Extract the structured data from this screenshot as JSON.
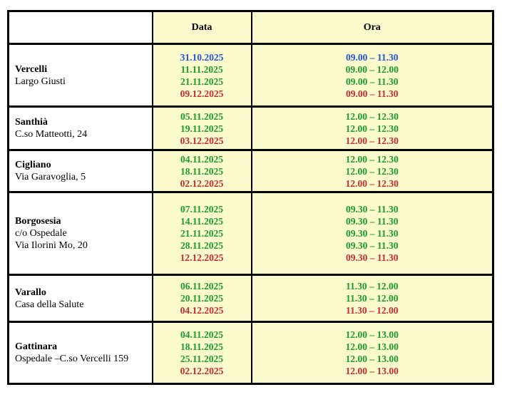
{
  "palette": {
    "blue": "#2353D9",
    "green": "#199C2C",
    "red": "#C82A2F",
    "cell_bg": "#FBFACD",
    "border": "#000000"
  },
  "table": {
    "header": {
      "location": "",
      "data": "Data",
      "ora": "Ora"
    },
    "rows": [
      {
        "name": "Vercelli",
        "address": [
          "Largo Giusti"
        ],
        "entries": [
          {
            "date": "31.10.2025",
            "ora": "09.00 – 11.30",
            "color": "blue"
          },
          {
            "date": "11.11.2025",
            "ora": "09.00 – 12.00",
            "color": "green"
          },
          {
            "date": "21.11.2025",
            "ora": "09.00 – 11.30",
            "color": "green"
          },
          {
            "date": "09.12.2025",
            "ora": "09.00 – 11.30",
            "color": "red"
          }
        ]
      },
      {
        "name": "Santhià",
        "address": [
          "C.so Matteotti, 24"
        ],
        "entries": [
          {
            "date": "05.11.2025",
            "ora": "12.00 – 12.30",
            "color": "green"
          },
          {
            "date": "19.11.2025",
            "ora": "12.00 – 12.30",
            "color": "green"
          },
          {
            "date": "03.12.2025",
            "ora": "12.00 – 12.30",
            "color": "red"
          }
        ]
      },
      {
        "name": "Cigliano",
        "address": [
          "Via Garavoglia, 5"
        ],
        "entries": [
          {
            "date": "04.11.2025",
            "ora": "12.00 – 12.30",
            "color": "green"
          },
          {
            "date": "18.11.2025",
            "ora": "12.00 – 12.30",
            "color": "green"
          },
          {
            "date": "02.12.2025",
            "ora": "12.00 – 12.30",
            "color": "red"
          }
        ]
      },
      {
        "name": "Borgosesia",
        "address": [
          "c/o Ospedale",
          "Via Ilorini Mo, 20"
        ],
        "entries": [
          {
            "date": "07.11.2025",
            "ora": "09.30 – 11.30",
            "color": "green"
          },
          {
            "date": "14.11.2025",
            "ora": "09.30 – 11.30",
            "color": "green"
          },
          {
            "date": "21.11.2025",
            "ora": "09.30 – 11.30",
            "color": "green"
          },
          {
            "date": "28.11.2025",
            "ora": "09.30 – 11.30",
            "color": "green"
          },
          {
            "date": "12.12.2025",
            "ora": "09.30 – 11.30",
            "color": "red"
          }
        ]
      },
      {
        "name": "Varallo",
        "address": [
          "Casa della Salute"
        ],
        "entries": [
          {
            "date": "06.11.2025",
            "ora": "11.30 – 12.00",
            "color": "green"
          },
          {
            "date": "20.11.2025",
            "ora": "11.30 – 12.00",
            "color": "green"
          },
          {
            "date": "04.12.2025",
            "ora": "11.30 – 12.00",
            "color": "red"
          }
        ]
      },
      {
        "name": "Gattinara",
        "address": [
          "Ospedale –C.so Vercelli 159"
        ],
        "entries": [
          {
            "date": "04.11.2025",
            "ora": "12.00 – 13.00",
            "color": "green"
          },
          {
            "date": "18.11.2025",
            "ora": "12.00 – 13.00",
            "color": "green"
          },
          {
            "date": "25.11.2025",
            "ora": "12.00 – 13.00",
            "color": "green"
          },
          {
            "date": "02.12.2025",
            "ora": "12.00 – 13.00",
            "color": "red"
          }
        ]
      }
    ]
  }
}
